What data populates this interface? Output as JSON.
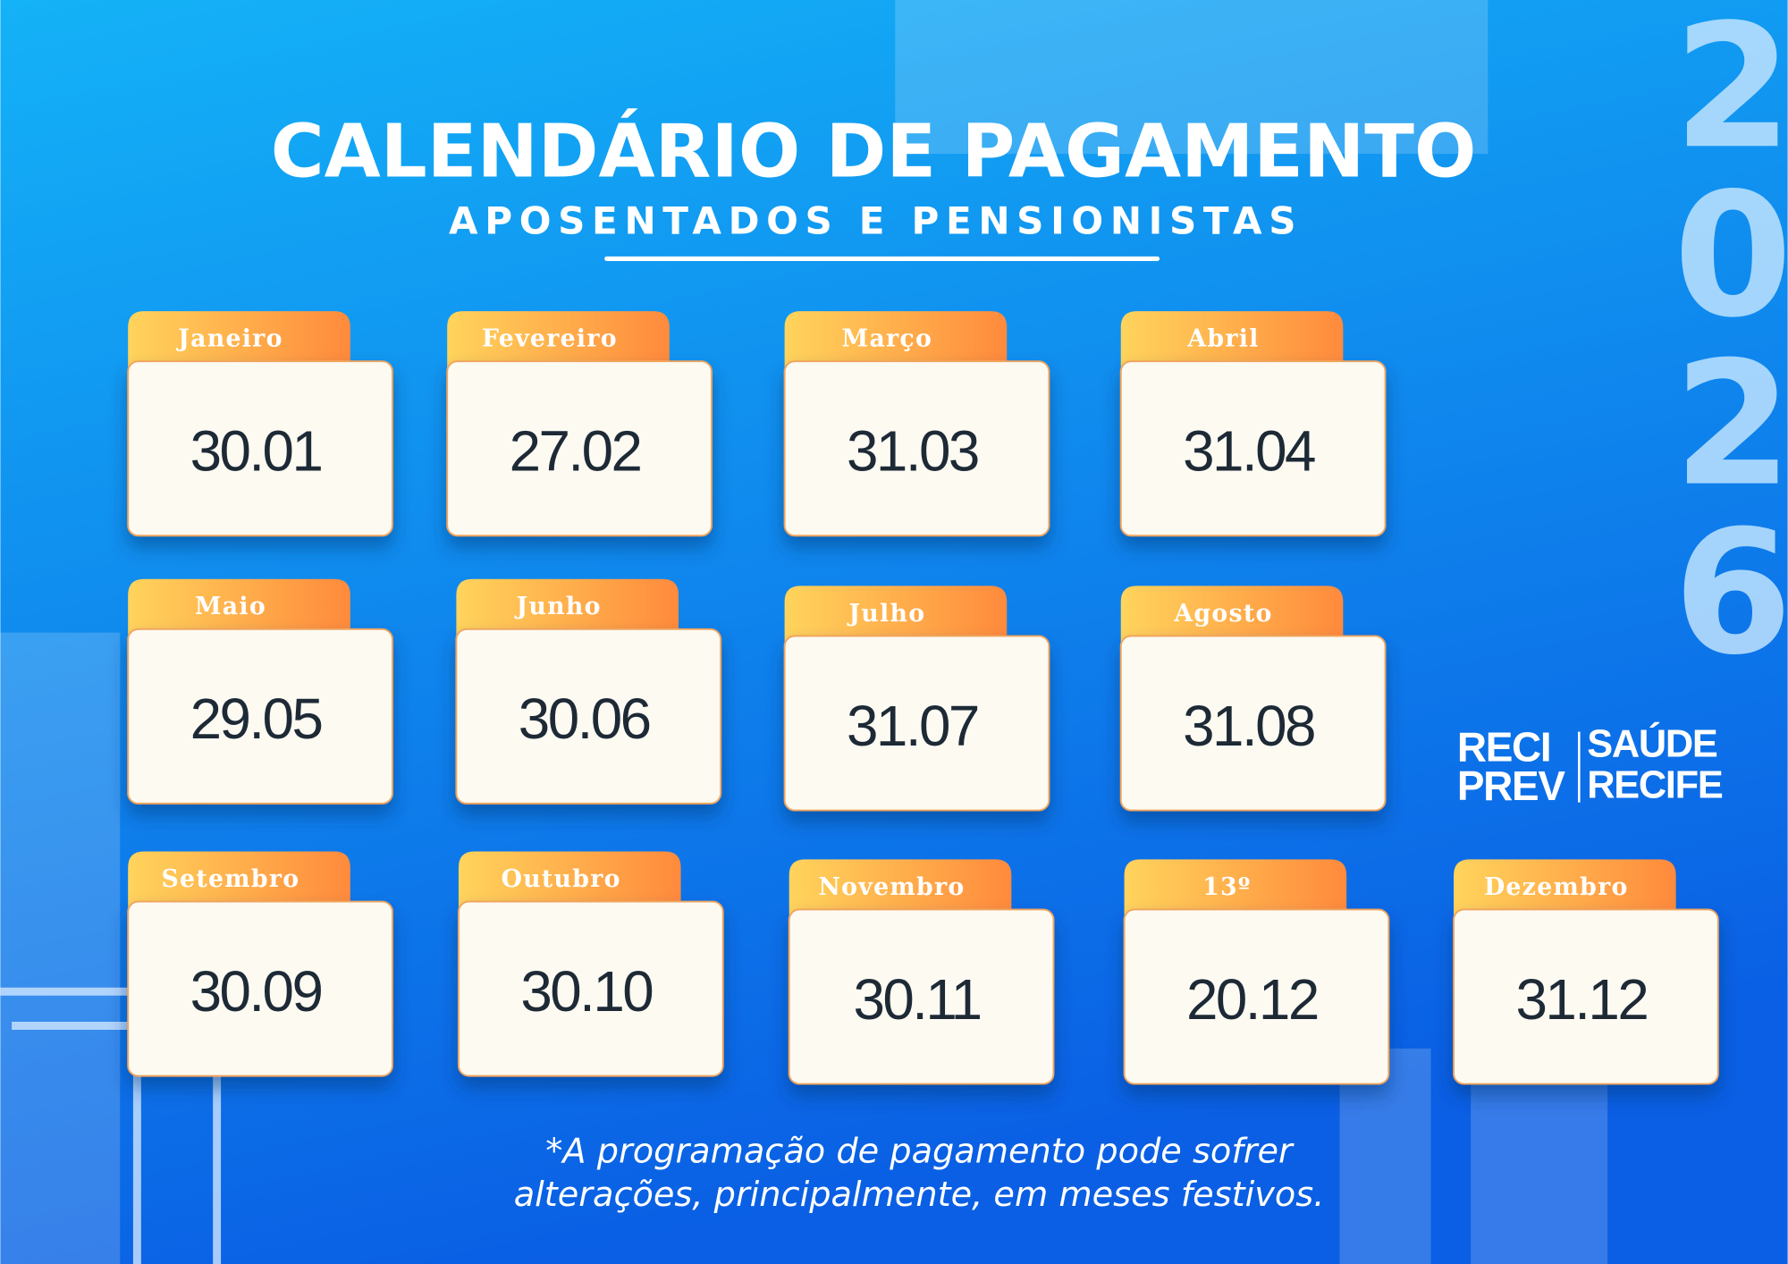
{
  "header": {
    "title": "CALENDÁRIO DE PAGAMENTO",
    "subtitle": "APOSENTADOS E PENSIONISTAS",
    "year_digits": [
      "2",
      "0",
      "2",
      "6"
    ]
  },
  "cards": [
    {
      "month": "Janeiro",
      "date": "30.01"
    },
    {
      "month": "Fevereiro",
      "date": "27.02"
    },
    {
      "month": "Março",
      "date": "31.03"
    },
    {
      "month": "Abril",
      "date": "31.04"
    },
    {
      "month": "Maio",
      "date": "29.05"
    },
    {
      "month": "Junho",
      "date": "30.06"
    },
    {
      "month": "Julho",
      "date": "31.07"
    },
    {
      "month": "Agosto",
      "date": "31.08"
    },
    {
      "month": "Setembro",
      "date": "30.09"
    },
    {
      "month": "Outubro",
      "date": "30.10"
    },
    {
      "month": "Novembro",
      "date": "30.11"
    },
    {
      "month": "13º",
      "date": "20.12"
    },
    {
      "month": "Dezembro",
      "date": "31.12"
    }
  ],
  "logos": {
    "left": [
      "RECI",
      "PREV"
    ],
    "right": [
      "SAÚDE",
      "RECIFE"
    ]
  },
  "footnote": [
    "*A programação de pagamento pode sofrer",
    "alterações, principalmente, em meses festivos."
  ]
}
